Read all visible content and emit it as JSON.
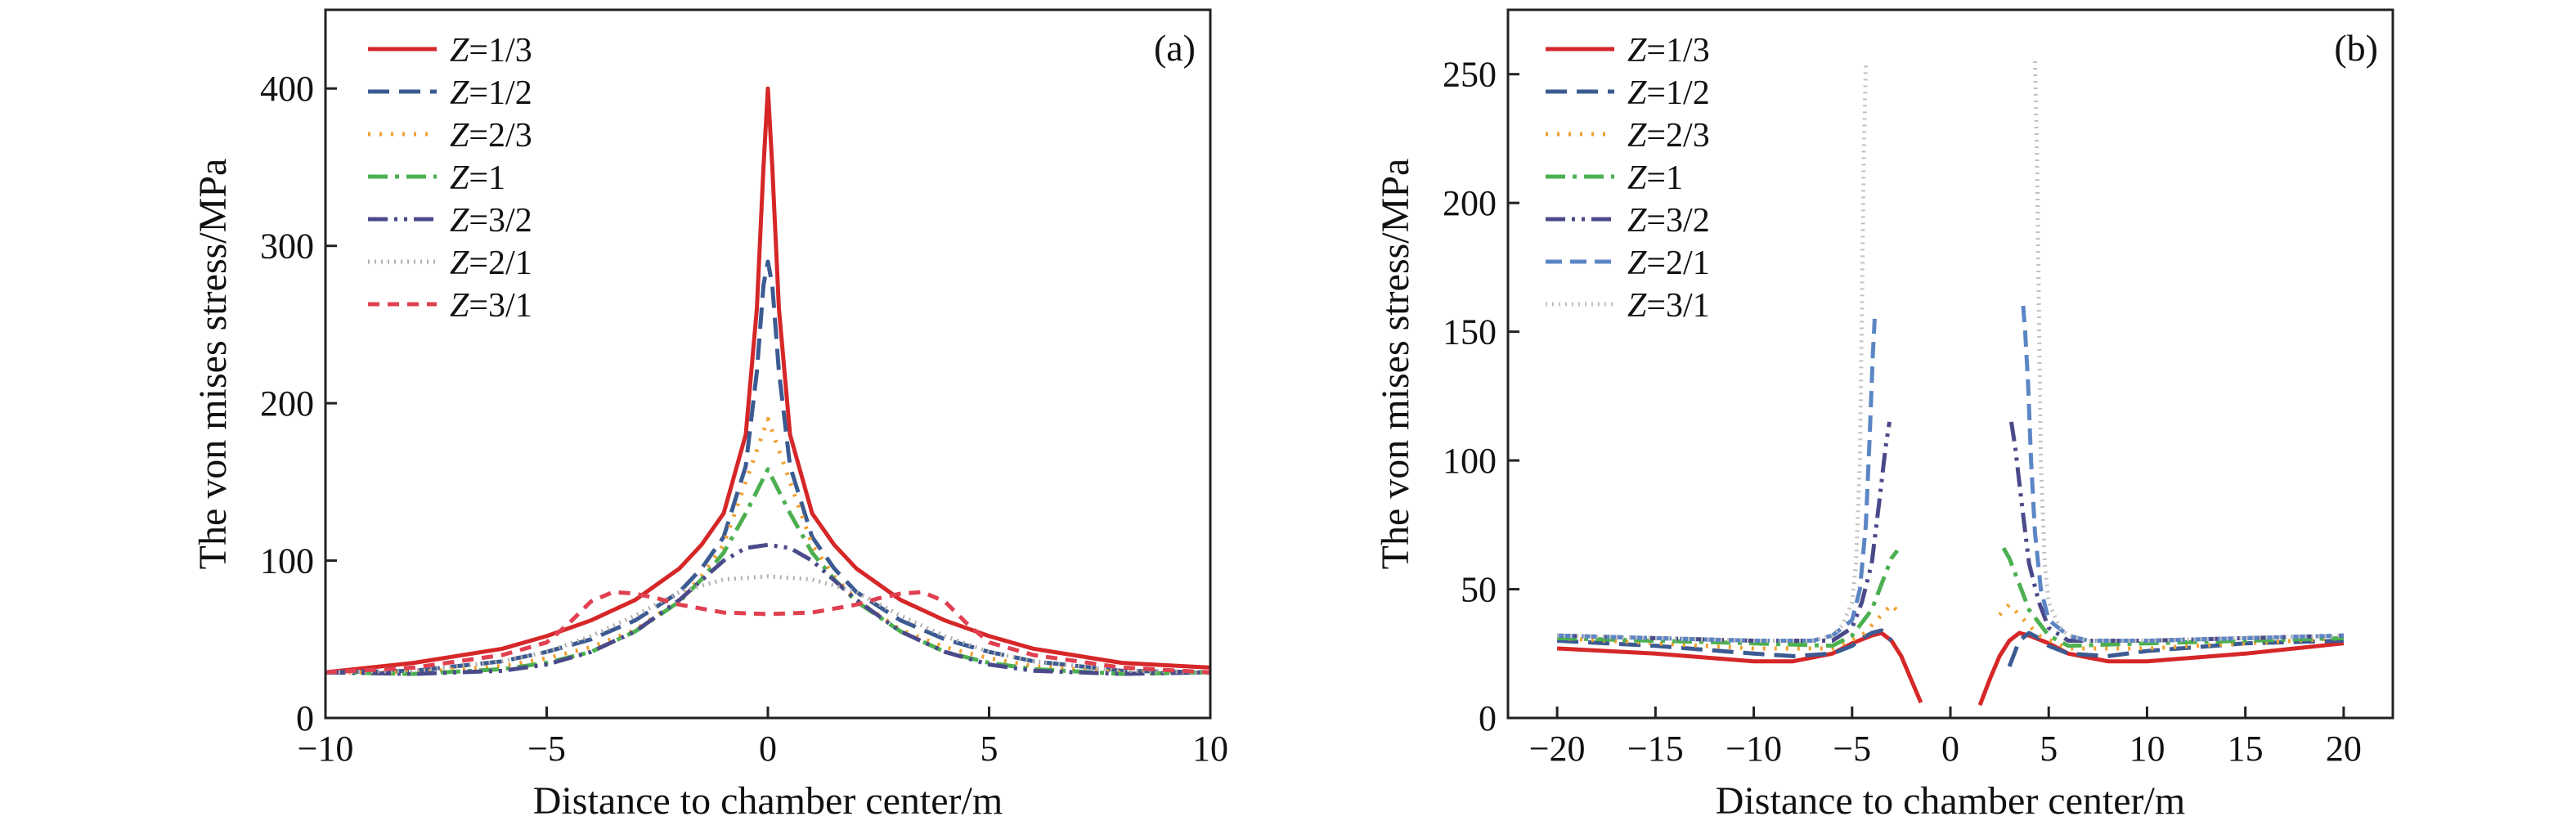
{
  "chart_data": [
    {
      "type": "line",
      "panel_label": "(a)",
      "xlabel": "Distance to chamber center/m",
      "ylabel": "The von mises stress/MPa",
      "xlim": [
        -10,
        10
      ],
      "ylim": [
        0,
        450
      ],
      "xticks": [
        -10,
        -5,
        0,
        5,
        10
      ],
      "yticks": [
        0,
        100,
        200,
        300,
        400
      ],
      "grid": false,
      "legend_position": "top-left",
      "series": [
        {
          "name": "Z=1/3",
          "color": "#d62728",
          "dash": "solid",
          "x": [
            -10,
            -8,
            -6,
            -5,
            -4,
            -3,
            -2,
            -1.5,
            -1,
            -0.5,
            -0.25,
            -0.1,
            0,
            0.1,
            0.25,
            0.5,
            1,
            1.5,
            2,
            3,
            4,
            5,
            6,
            8,
            10
          ],
          "y": [
            29,
            35,
            44,
            52,
            62,
            75,
            95,
            110,
            130,
            180,
            260,
            350,
            400,
            350,
            260,
            180,
            130,
            110,
            95,
            75,
            62,
            52,
            44,
            35,
            32
          ]
        },
        {
          "name": "Z=1/2",
          "color": "#3b5b92",
          "dash": "dashed",
          "x": [
            -10,
            -8,
            -6,
            -5,
            -4,
            -3,
            -2,
            -1.5,
            -1,
            -0.5,
            -0.25,
            -0.1,
            0,
            0.1,
            0.25,
            0.5,
            1,
            1.5,
            2,
            3,
            4,
            5,
            6,
            8,
            10
          ],
          "y": [
            29,
            30,
            36,
            42,
            50,
            62,
            80,
            95,
            115,
            160,
            220,
            275,
            290,
            275,
            220,
            160,
            115,
            95,
            80,
            62,
            50,
            42,
            36,
            30,
            29
          ]
        },
        {
          "name": "Z=2/3",
          "color": "#f0a030",
          "dash": "dotted",
          "x": [
            -10,
            -8,
            -6,
            -5,
            -4,
            -3,
            -2,
            -1.5,
            -1,
            -0.5,
            0,
            0.5,
            1,
            1.5,
            2,
            3,
            4,
            5,
            6,
            8,
            10
          ],
          "y": [
            29,
            29,
            33,
            38,
            45,
            56,
            75,
            90,
            110,
            150,
            190,
            150,
            110,
            90,
            75,
            56,
            45,
            38,
            33,
            29,
            29
          ]
        },
        {
          "name": "Z=1",
          "color": "#4cb050",
          "dash": "dashdot",
          "x": [
            -10,
            -8,
            -6,
            -5,
            -4,
            -3,
            -2,
            -1.5,
            -1,
            -0.5,
            0,
            0.5,
            1,
            1.5,
            2,
            3,
            4,
            5,
            6,
            8,
            10
          ],
          "y": [
            29,
            28,
            31,
            35,
            42,
            55,
            74,
            88,
            105,
            130,
            158,
            130,
            105,
            88,
            74,
            55,
            42,
            35,
            31,
            28,
            29
          ]
        },
        {
          "name": "Z=3/2",
          "color": "#4a4a8a",
          "dash": "dashdotdot",
          "x": [
            -10,
            -8,
            -6,
            -5,
            -4,
            -3,
            -2,
            -1,
            -0.5,
            0,
            0.5,
            1,
            2,
            3,
            4,
            5,
            6,
            8,
            10
          ],
          "y": [
            29,
            28,
            30,
            34,
            42,
            55,
            75,
            100,
            108,
            110,
            108,
            100,
            75,
            55,
            42,
            34,
            30,
            28,
            29
          ]
        },
        {
          "name": "Z=2/1",
          "color": "#b0b0b0",
          "dash": "finedot",
          "x": [
            -10,
            -8,
            -6,
            -5,
            -4,
            -3,
            -2,
            -1,
            0,
            1,
            2,
            3,
            4,
            5,
            6,
            8,
            10
          ],
          "y": [
            29,
            30,
            36,
            42,
            52,
            65,
            80,
            88,
            90,
            88,
            80,
            65,
            52,
            42,
            36,
            30,
            29
          ]
        },
        {
          "name": "Z=3/1",
          "color": "#e04050",
          "dash": "shortdash",
          "x": [
            -10,
            -8,
            -6,
            -5,
            -4.5,
            -4,
            -3.5,
            -3,
            -2.5,
            -2,
            -1,
            0,
            1,
            2,
            2.5,
            3,
            3.5,
            4,
            4.5,
            5,
            6,
            8,
            10
          ],
          "y": [
            29,
            32,
            40,
            48,
            60,
            74,
            80,
            79,
            76,
            72,
            67,
            66,
            67,
            72,
            76,
            79,
            80,
            74,
            60,
            48,
            40,
            32,
            29
          ]
        }
      ]
    },
    {
      "type": "line",
      "panel_label": "(b)",
      "xlabel": "Distance to chamber center/m",
      "ylabel": "The von mises stress/MPa",
      "xlim": [
        -22.5,
        22.5
      ],
      "ylim": [
        0,
        275
      ],
      "xticks": [
        -20,
        -15,
        -10,
        -5,
        0,
        5,
        10,
        15,
        20
      ],
      "yticks": [
        0,
        50,
        100,
        150,
        200,
        250
      ],
      "grid": false,
      "legend_position": "top-left",
      "series": [
        {
          "name": "Z=1/3",
          "color": "#d62728",
          "dash": "solid",
          "segments": [
            {
              "x": [
                -20,
                -15,
                -10,
                -8,
                -6,
                -5,
                -4,
                -3.5,
                -3,
                -2.5,
                -2,
                -1.5
              ],
              "y": [
                27,
                25,
                22,
                22,
                25,
                29,
                32,
                33,
                30,
                24,
                15,
                6
              ]
            },
            {
              "x": [
                1.5,
                2,
                2.5,
                3,
                3.5,
                4,
                5,
                6,
                8,
                10,
                15,
                20
              ],
              "y": [
                5,
                15,
                24,
                30,
                33,
                32,
                29,
                25,
                22,
                22,
                25,
                29
              ]
            }
          ]
        },
        {
          "name": "Z=1/2",
          "color": "#3b5b92",
          "dash": "dashed",
          "segments": [
            {
              "x": [
                -20,
                -15,
                -10,
                -8,
                -6,
                -5,
                -4.5,
                -4,
                -3.5,
                -3
              ],
              "y": [
                30,
                28,
                25,
                24,
                25,
                28,
                31,
                33,
                34,
                30
              ]
            },
            {
              "x": [
                3,
                3.5,
                4,
                4.5,
                5,
                6,
                8,
                10,
                15,
                20
              ],
              "y": [
                20,
                30,
                33,
                31,
                28,
                25,
                24,
                26,
                29,
                30
              ]
            }
          ]
        },
        {
          "name": "Z=2/3",
          "color": "#f0a030",
          "dash": "dotted",
          "segments": [
            {
              "x": [
                -20,
                -15,
                -10,
                -6,
                -4.5,
                -3.5,
                -3,
                -2.5
              ],
              "y": [
                31,
                29,
                27,
                27,
                32,
                40,
                44,
                40
              ]
            },
            {
              "x": [
                2.5,
                3,
                3.5,
                4.5,
                6,
                10,
                15,
                20
              ],
              "y": [
                40,
                44,
                40,
                32,
                27,
                27,
                29,
                31
              ]
            }
          ]
        },
        {
          "name": "Z=1",
          "color": "#4cb050",
          "dash": "dashdot",
          "segments": [
            {
              "x": [
                -20,
                -15,
                -10,
                -6,
                -5,
                -4,
                -3.5,
                -3,
                -2.7
              ],
              "y": [
                31,
                30,
                29,
                28,
                32,
                42,
                52,
                62,
                65
              ]
            },
            {
              "x": [
                2.7,
                3,
                3.5,
                4,
                5,
                6,
                10,
                15,
                20
              ],
              "y": [
                66,
                62,
                52,
                42,
                32,
                28,
                29,
                30,
                31
              ]
            }
          ]
        },
        {
          "name": "Z=3/2",
          "color": "#4a4a8a",
          "dash": "dashdotdot",
          "segments": [
            {
              "x": [
                -20,
                -15,
                -10,
                -6,
                -5,
                -4.5,
                -4,
                -3.6,
                -3.3,
                -3.1
              ],
              "y": [
                32,
                31,
                30,
                30,
                35,
                45,
                60,
                85,
                105,
                115
              ]
            },
            {
              "x": [
                3.1,
                3.3,
                3.6,
                4,
                4.5,
                5,
                6,
                10,
                15,
                20
              ],
              "y": [
                115,
                105,
                85,
                60,
                45,
                35,
                30,
                30,
                31,
                32
              ]
            }
          ]
        },
        {
          "name": "Z=2/1",
          "color": "#5b86c5",
          "dash": "longdash",
          "segments": [
            {
              "x": [
                -20,
                -15,
                -10,
                -7,
                -6,
                -5,
                -4.6,
                -4.3,
                -4.1,
                -3.95,
                -3.85
              ],
              "y": [
                32,
                31,
                30,
                30,
                32,
                38,
                50,
                75,
                110,
                140,
                155
              ]
            },
            {
              "x": [
                3.7,
                3.8,
                3.95,
                4.1,
                4.3,
                4.6,
                5,
                6,
                7,
                10,
                15,
                20
              ],
              "y": [
                160,
                150,
                130,
                100,
                72,
                50,
                38,
                32,
                30,
                30,
                31,
                32
              ]
            }
          ]
        },
        {
          "name": "Z=3/1",
          "color": "#c0c0c0",
          "dash": "finedot",
          "segments": [
            {
              "x": [
                -20,
                -15,
                -10,
                -7,
                -6,
                -5.5,
                -5,
                -4.8,
                -4.6,
                -4.5,
                -4.4,
                -4.3
              ],
              "y": [
                32,
                31,
                30,
                30,
                32,
                36,
                45,
                60,
                100,
                160,
                220,
                255
              ]
            },
            {
              "x": [
                4.3,
                4.4,
                4.5,
                4.6,
                4.8,
                5,
                5.5,
                6,
                7,
                10,
                15,
                20
              ],
              "y": [
                255,
                220,
                160,
                100,
                60,
                45,
                36,
                32,
                30,
                30,
                31,
                32
              ]
            }
          ]
        }
      ]
    }
  ]
}
